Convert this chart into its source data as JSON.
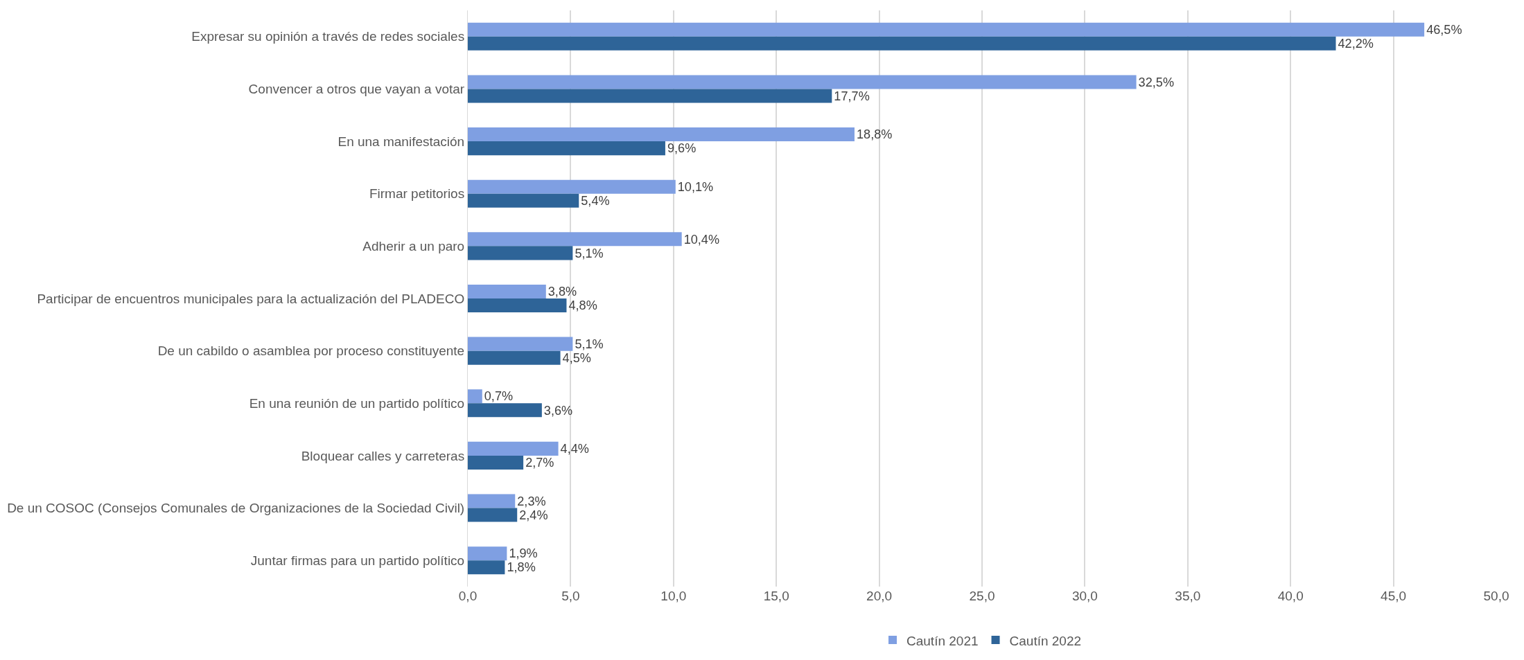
{
  "chart_data": {
    "type": "bar",
    "orientation": "horizontal",
    "categories": [
      "Expresar su opinión a través de redes sociales",
      "Convencer a otros que vayan a votar",
      "En una manifestación",
      "Firmar petitorios",
      "Adherir a un paro",
      "Participar de encuentros municipales para la actualización del PLADECO",
      "De un cabildo o asamblea por proceso constituyente",
      "En una reunión de un partido político",
      "Bloquear calles y carreteras",
      "De un COSOC (Consejos Comunales de Organizaciones de la Sociedad Civil)",
      "Juntar firmas para un partido político"
    ],
    "series": [
      {
        "name": "Cautín 2021",
        "color": "#7f9fe2",
        "values": [
          46.5,
          32.5,
          18.8,
          10.1,
          10.4,
          3.8,
          5.1,
          0.7,
          4.4,
          2.3,
          1.9
        ],
        "value_labels": [
          "46,5%",
          "32,5%",
          "18,8%",
          "10,1%",
          "10,4%",
          "3,8%",
          "5,1%",
          "0,7%",
          "4,4%",
          "2,3%",
          "1,9%"
        ]
      },
      {
        "name": "Cautín 2022",
        "color": "#2e6498",
        "values": [
          42.2,
          17.7,
          9.6,
          5.4,
          5.1,
          4.8,
          4.5,
          3.6,
          2.7,
          2.4,
          1.8
        ],
        "value_labels": [
          "42,2%",
          "17,7%",
          "9,6%",
          "5,4%",
          "5,1%",
          "4,8%",
          "4,5%",
          "3,6%",
          "2,7%",
          "2,4%",
          "1,8%"
        ]
      }
    ],
    "xlim": [
      0,
      50
    ],
    "xticks": [
      {
        "value": 0,
        "label": "0,0"
      },
      {
        "value": 5,
        "label": "5,0"
      },
      {
        "value": 10,
        "label": "10,0"
      },
      {
        "value": 15,
        "label": "15,0"
      },
      {
        "value": 20,
        "label": "20,0"
      },
      {
        "value": 25,
        "label": "25,0"
      },
      {
        "value": 30,
        "label": "30,0"
      },
      {
        "value": 35,
        "label": "35,0"
      },
      {
        "value": 40,
        "label": "40,0"
      },
      {
        "value": 45,
        "label": "45,0"
      },
      {
        "value": 50,
        "label": "50,0"
      }
    ],
    "grid": "x",
    "legend": "bottom"
  }
}
